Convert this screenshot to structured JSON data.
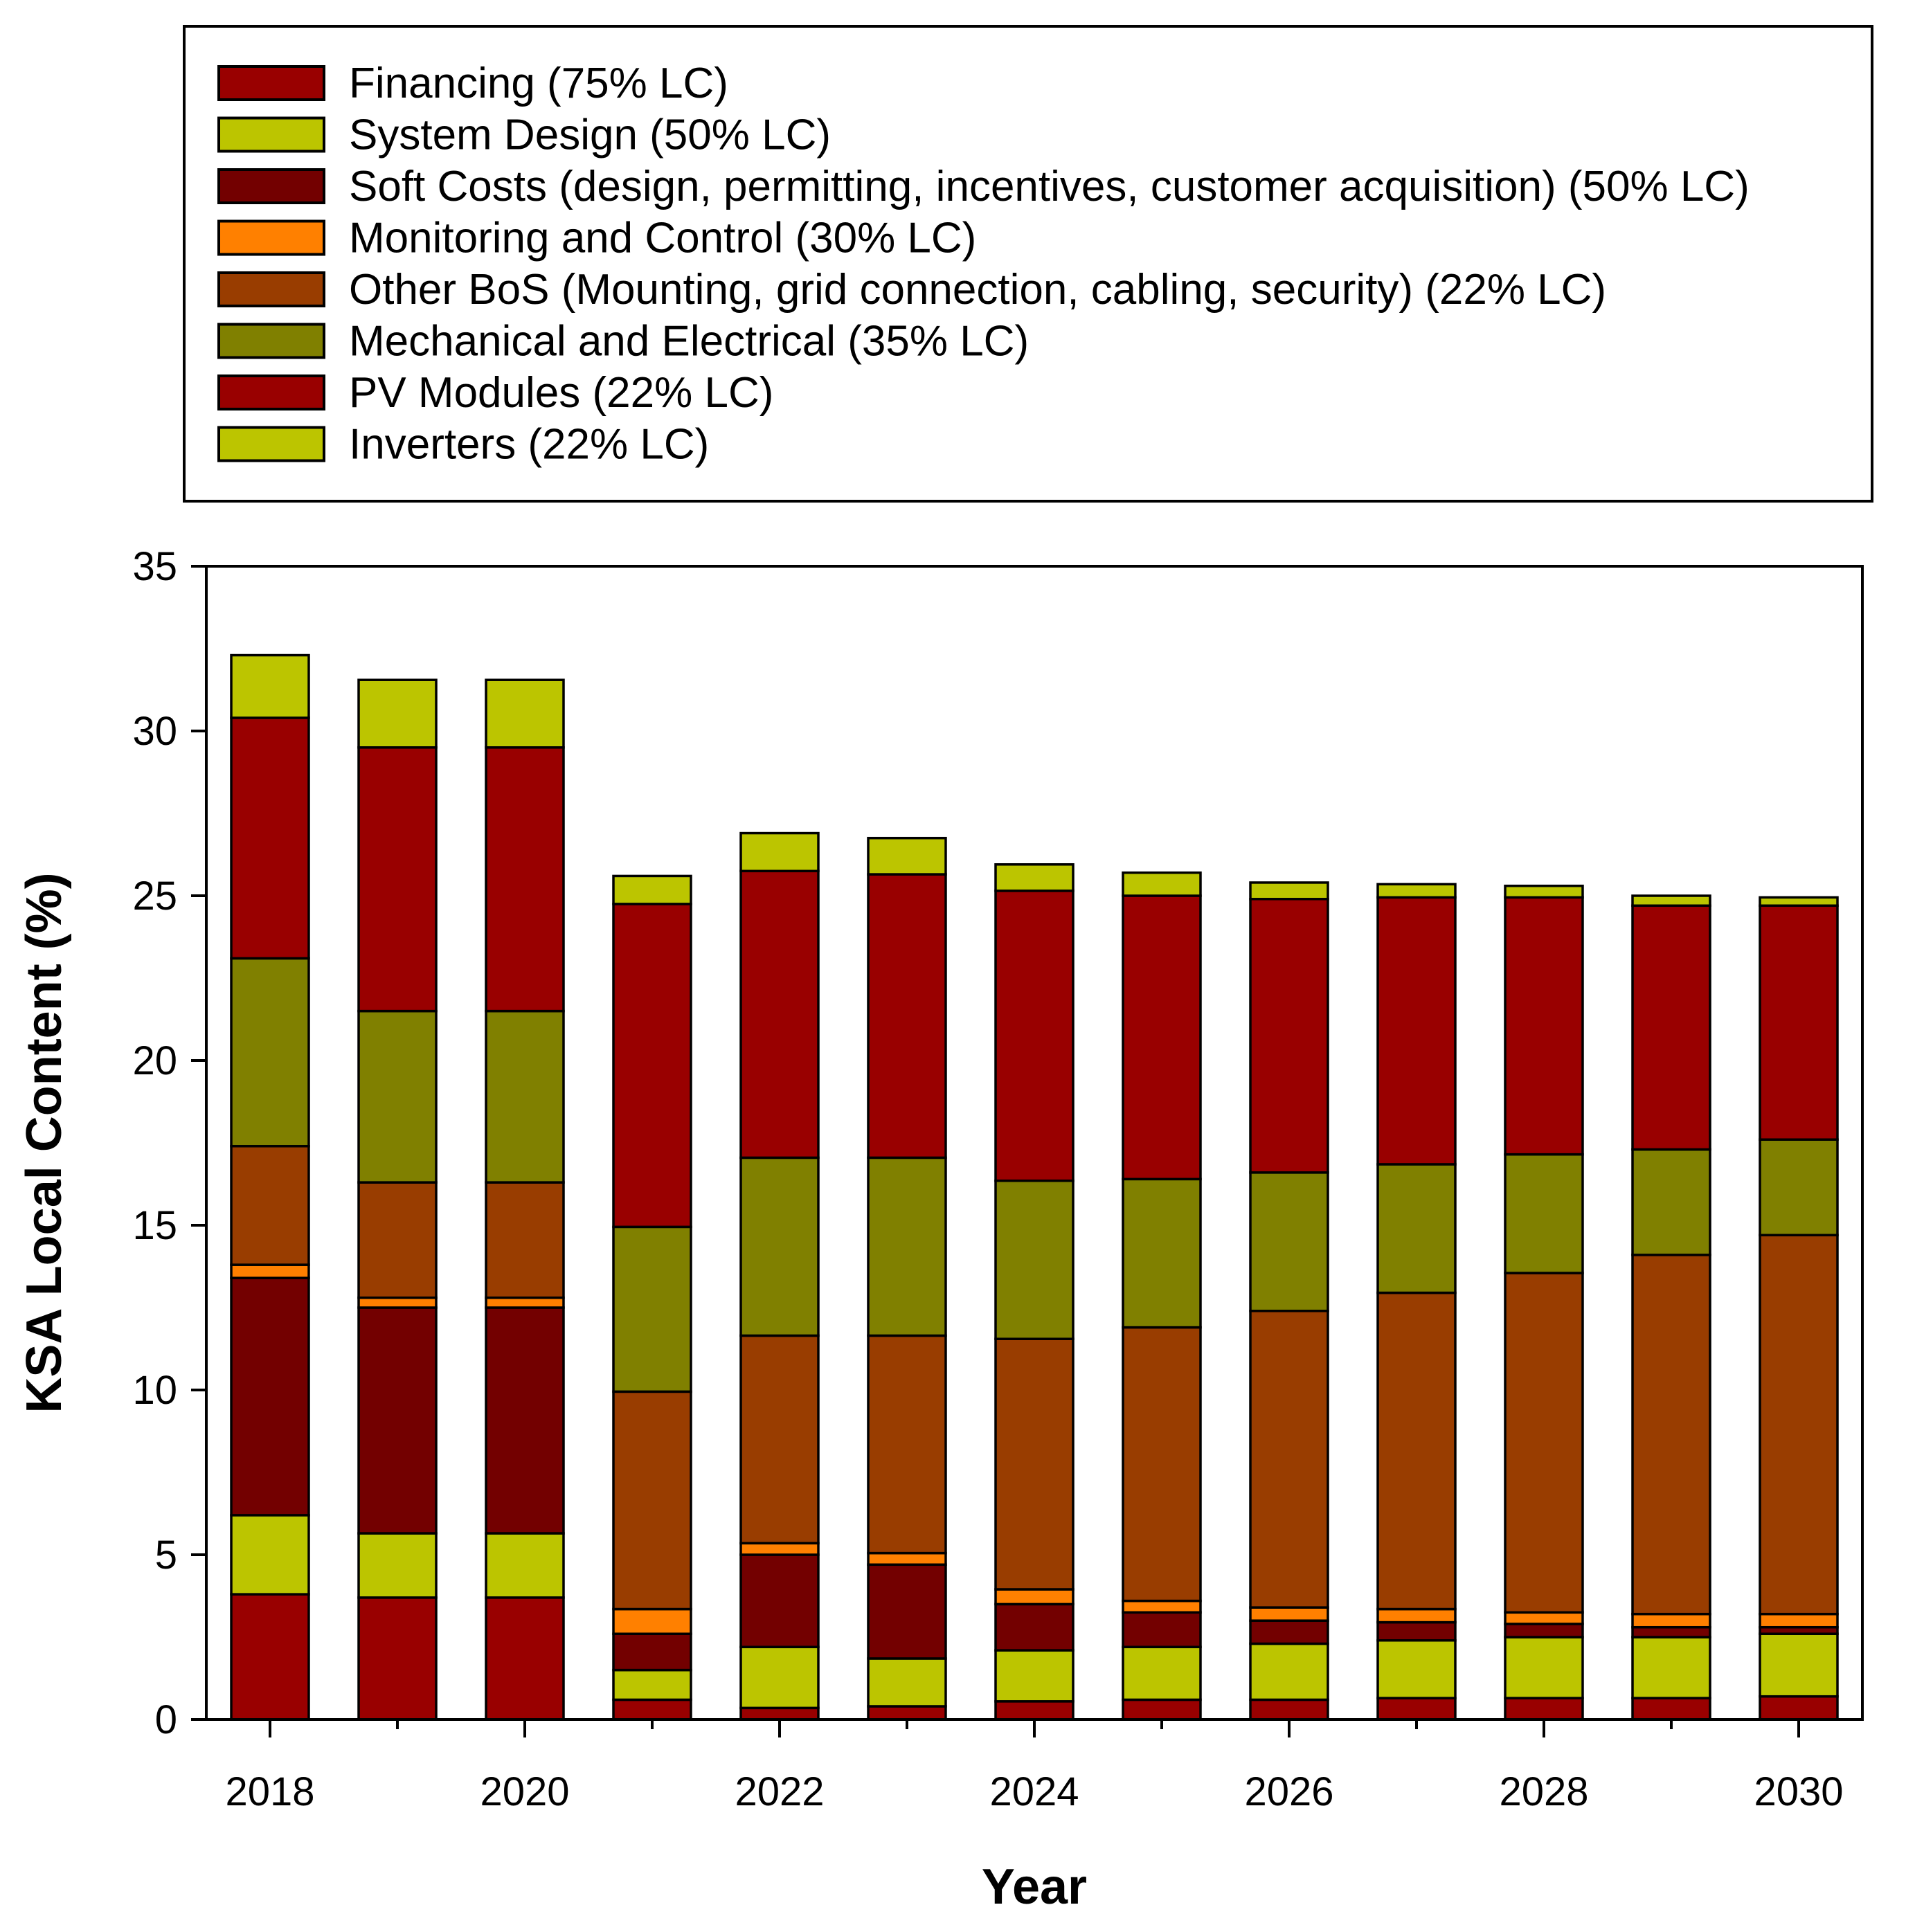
{
  "chart_data": {
    "type": "bar",
    "stacked": true,
    "xlabel": "Year",
    "ylabel": "KSA Local Content (%)",
    "ylim": [
      0,
      35
    ],
    "y_ticks": [
      "0",
      "5",
      "10",
      "15",
      "20",
      "25",
      "30",
      "35"
    ],
    "x_tick_labels": [
      "2018",
      "2020",
      "2022",
      "2024",
      "2026",
      "2028",
      "2030"
    ],
    "categories": [
      "2018",
      "2019",
      "2020",
      "2021",
      "2022",
      "2023",
      "2024",
      "2025",
      "2026",
      "2027",
      "2028",
      "2029",
      "2030"
    ],
    "grid": false,
    "legend_position": "top",
    "series": [
      {
        "name": "Inverters (22% LC)",
        "color": "#BCC500",
        "values": [
          3.8,
          3.7,
          3.7,
          0.6,
          0.35,
          0.4,
          0.55,
          0.6,
          0.6,
          0.65,
          0.65,
          0.65,
          0.7
        ]
      },
      {
        "name": "PV Modules (22% LC)",
        "color": "#990000",
        "values": [
          0.0,
          0.0,
          0.0,
          0.0,
          0.0,
          0.0,
          0.0,
          0.0,
          0.0,
          0.0,
          0.0,
          0.0,
          0.0
        ]
      },
      {
        "name": "Mechanical and Electrical (35% LC)",
        "color": "#808000",
        "values": [
          0.0,
          0.0,
          0.0,
          0.0,
          0.0,
          0.0,
          0.0,
          0.0,
          0.0,
          0.0,
          0.0,
          0.0,
          0.0
        ]
      },
      {
        "name": "Other BoS (Mounting, grid connection, cabling, security) (22% LC)",
        "color": "#993D00",
        "values": [
          0.0,
          0.0,
          0.0,
          0.0,
          0.0,
          0.0,
          0.0,
          0.0,
          0.0,
          0.0,
          0.0,
          0.0,
          0.0
        ]
      },
      {
        "name": "Monitoring and Control (30% LC)",
        "color": "#FF8000",
        "values": [
          0.0,
          0.0,
          0.0,
          0.0,
          0.0,
          0.0,
          0.0,
          0.0,
          0.0,
          0.0,
          0.0,
          0.0,
          0.0
        ]
      },
      {
        "name": "Soft Costs (design, permitting, incentives, customer acquisition) (50% LC)",
        "color": "#730000",
        "values": [
          0.0,
          0.0,
          0.0,
          0.0,
          0.0,
          0.0,
          0.0,
          0.0,
          0.0,
          0.0,
          0.0,
          0.0,
          0.0
        ]
      },
      {
        "name": "System Design (50% LC)",
        "color": "#BCC500",
        "values": [
          0.0,
          0.0,
          0.0,
          0.0,
          0.0,
          0.0,
          0.0,
          0.0,
          0.0,
          0.0,
          0.0,
          0.0,
          0.0
        ]
      },
      {
        "name": "Financing (75% LC)",
        "color": "#990000",
        "values": [
          0.0,
          0.0,
          0.0,
          0.0,
          0.0,
          0.0,
          0.0,
          0.0,
          0.0,
          0.0,
          0.0,
          0.0,
          0.0
        ]
      }
    ]
  }
}
